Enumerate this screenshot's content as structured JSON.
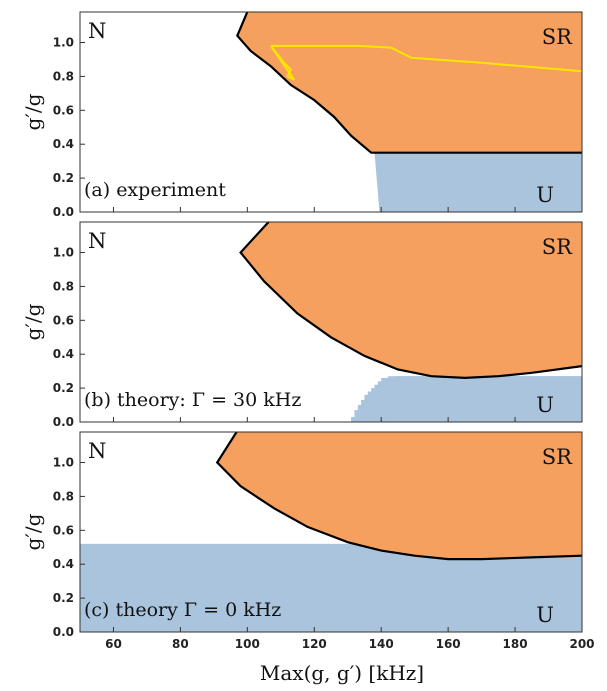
{
  "figure": {
    "xlabel": "Max(g, g′) [kHz]"
  },
  "colors": {
    "SR": "#f5a05e",
    "U": "#a9c4dc",
    "N": "#ffffff",
    "boundary": "#000000",
    "experiment_contour": "#ffe600"
  },
  "chart_data": [
    {
      "type": "area",
      "panel_label": "(a) experiment",
      "ylabel": "g′/g",
      "xlim": [
        50,
        200
      ],
      "ylim": [
        0,
        1.18
      ],
      "yticks": [
        "0.0",
        "0.2",
        "0.4",
        "0.6",
        "0.8",
        "1.0"
      ],
      "xticks": [],
      "region_labels": {
        "N": "N",
        "SR": "SR",
        "U": "U"
      },
      "regions": {
        "SR_boundary": [
          [
            100,
            1.18
          ],
          [
            97,
            1.04
          ],
          [
            101,
            0.95
          ],
          [
            107,
            0.86
          ],
          [
            113,
            0.75
          ],
          [
            120,
            0.66
          ],
          [
            126,
            0.56
          ],
          [
            131,
            0.45
          ],
          [
            137,
            0.35
          ],
          [
            160,
            0.35
          ],
          [
            180,
            0.35
          ],
          [
            200,
            0.35
          ]
        ],
        "U_boundary": [
          [
            139.5,
            0
          ],
          [
            138,
            0.35
          ],
          [
            160,
            0.35
          ],
          [
            180,
            0.35
          ],
          [
            200,
            0.35
          ]
        ]
      },
      "contour": [
        [
          107,
          0.98
        ],
        [
          133,
          0.98
        ],
        [
          143,
          0.97
        ],
        [
          149,
          0.91
        ],
        [
          170,
          0.88
        ],
        [
          200,
          0.83
        ],
        [
          200,
          0.83
        ]
      ],
      "contour_hook": [
        [
          107,
          0.98
        ],
        [
          111,
          0.88
        ],
        [
          113,
          0.84
        ],
        [
          112,
          0.8
        ],
        [
          114,
          0.78
        ],
        [
          107,
          0.98
        ]
      ]
    },
    {
      "type": "area",
      "panel_label": "(b) theory: Γ = 30 kHz",
      "ylabel": "g′/g",
      "xlim": [
        50,
        200
      ],
      "ylim": [
        0,
        1.18
      ],
      "yticks": [
        "0.0",
        "0.2",
        "0.4",
        "0.6",
        "0.8",
        "1.0"
      ],
      "xticks": [],
      "region_labels": {
        "N": "N",
        "SR": "SR",
        "U": "U"
      },
      "regions": {
        "SR_nose": [
          98,
          1.0
        ],
        "SR_upper_top_x": 111,
        "SR_lower_boundary": [
          [
            98,
            1.0
          ],
          [
            105,
            0.83
          ],
          [
            115,
            0.64
          ],
          [
            125,
            0.5
          ],
          [
            135,
            0.39
          ],
          [
            145,
            0.31
          ],
          [
            155,
            0.27
          ],
          [
            165,
            0.26
          ],
          [
            175,
            0.27
          ],
          [
            185,
            0.29
          ],
          [
            200,
            0.33
          ]
        ],
        "U_staircase": [
          [
            131,
            0.03
          ],
          [
            132,
            0.07
          ],
          [
            133,
            0.1
          ],
          [
            134,
            0.13
          ],
          [
            135,
            0.16
          ],
          [
            136,
            0.18
          ],
          [
            137,
            0.2
          ],
          [
            138,
            0.22
          ],
          [
            139,
            0.24
          ],
          [
            140,
            0.26
          ],
          [
            142,
            0.27
          ],
          [
            144,
            0.27
          ]
        ]
      }
    },
    {
      "type": "area",
      "panel_label": "(c) theory Γ = 0 kHz",
      "ylabel": "g′/g",
      "xlim": [
        50,
        200
      ],
      "ylim": [
        0,
        1.18
      ],
      "yticks": [
        "0.0",
        "0.2",
        "0.4",
        "0.6",
        "0.8",
        "1.0"
      ],
      "xticks": [
        "60",
        "80",
        "100",
        "120",
        "140",
        "160",
        "180",
        "200"
      ],
      "region_labels": {
        "N": "N",
        "SR": "SR",
        "U": "U"
      },
      "regions": {
        "U_top": 0.52,
        "SR_nose": [
          91,
          1.0
        ],
        "SR_upper_top_x": 100,
        "SR_lower_boundary": [
          [
            91,
            1.0
          ],
          [
            98,
            0.86
          ],
          [
            108,
            0.73
          ],
          [
            118,
            0.62
          ],
          [
            130,
            0.53
          ],
          [
            140,
            0.48
          ],
          [
            150,
            0.45
          ],
          [
            160,
            0.43
          ],
          [
            170,
            0.43
          ],
          [
            185,
            0.44
          ],
          [
            200,
            0.45
          ]
        ]
      }
    }
  ]
}
